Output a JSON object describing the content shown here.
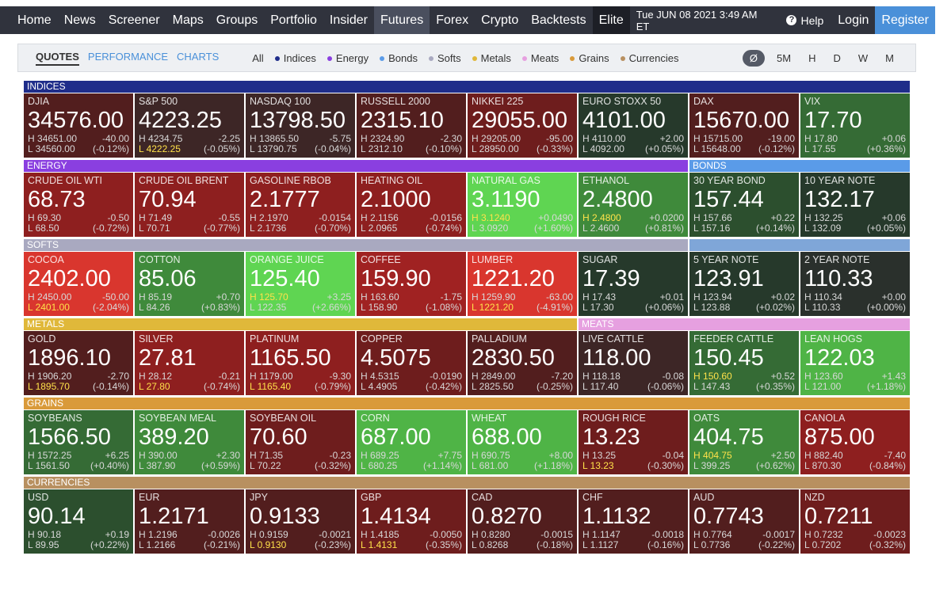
{
  "nav": {
    "items": [
      "Home",
      "News",
      "Screener",
      "Maps",
      "Groups",
      "Portfolio",
      "Insider",
      "Futures",
      "Forex",
      "Crypto",
      "Backtests",
      "Elite"
    ],
    "active": "Futures",
    "datetime": "Tue JUN 08 2021 3:49 AM ET",
    "help": "Help",
    "login": "Login",
    "register": "Register"
  },
  "toolbar": {
    "tabs": [
      "QUOTES",
      "PERFORMANCE",
      "CHARTS"
    ],
    "filters": [
      {
        "label": "All"
      },
      {
        "label": "Indices",
        "color": "#1f2d8a"
      },
      {
        "label": "Energy",
        "color": "#8a3fe0"
      },
      {
        "label": "Bonds",
        "color": "#5a9be8"
      },
      {
        "label": "Softs",
        "color": "#a9a9c0"
      },
      {
        "label": "Metals",
        "color": "#e0b83a"
      },
      {
        "label": "Meats",
        "color": "#e6a0e0"
      },
      {
        "label": "Grains",
        "color": "#d99a3a"
      },
      {
        "label": "Currencies",
        "color": "#b89060"
      }
    ],
    "timeframes": [
      "Ø",
      "5M",
      "H",
      "D",
      "W",
      "M"
    ]
  },
  "labels": {
    "high": "H",
    "low": "L"
  },
  "rows": [
    {
      "headers": [
        {
          "label": "INDICES",
          "span": 8,
          "color": "#1f2d8a"
        }
      ],
      "tiles": [
        {
          "name": "DJIA",
          "price": "34576.00",
          "high": "34651.00",
          "low": "34560.00",
          "change": "-40.00",
          "percent": "(-0.12%)",
          "color": "#521e1e"
        },
        {
          "name": "S&P 500",
          "price": "4223.25",
          "high": "4234.75",
          "low": "4222.25",
          "change": "-2.25",
          "percent": "(-0.05%)",
          "color": "#3d2626",
          "flag": "low"
        },
        {
          "name": "NASDAQ 100",
          "price": "13798.50",
          "high": "13865.50",
          "low": "13790.75",
          "change": "-5.75",
          "percent": "(-0.04%)",
          "color": "#3d2626"
        },
        {
          "name": "RUSSELL 2000",
          "price": "2315.10",
          "high": "2324.90",
          "low": "2312.10",
          "change": "-2.30",
          "percent": "(-0.10%)",
          "color": "#521e1e"
        },
        {
          "name": "NIKKEI 225",
          "price": "29055.00",
          "high": "29205.00",
          "low": "28950.00",
          "change": "-95.00",
          "percent": "(-0.33%)",
          "color": "#6e1d1d"
        },
        {
          "name": "EURO STOXX 50",
          "price": "4101.00",
          "high": "4110.00",
          "low": "4092.00",
          "change": "+2.00",
          "percent": "(+0.05%)",
          "color": "#26392b"
        },
        {
          "name": "DAX",
          "price": "15670.00",
          "high": "15715.00",
          "low": "15648.00",
          "change": "-19.00",
          "percent": "(-0.12%)",
          "color": "#521e1e"
        },
        {
          "name": "VIX",
          "price": "17.70",
          "high": "17.80",
          "low": "17.55",
          "change": "+0.06",
          "percent": "(+0.36%)",
          "color": "#356b35"
        }
      ]
    },
    {
      "headers": [
        {
          "label": "ENERGY",
          "span": 6,
          "color": "#8a3fe0"
        },
        {
          "label": "BONDS",
          "span": 2,
          "color": "#5a9be8"
        }
      ],
      "tiles": [
        {
          "name": "CRUDE OIL WTI",
          "price": "68.73",
          "high": "69.30",
          "low": "68.50",
          "change": "-0.50",
          "percent": "(-0.72%)",
          "color": "#8e1f1f"
        },
        {
          "name": "CRUDE OIL BRENT",
          "price": "70.94",
          "high": "71.49",
          "low": "70.71",
          "change": "-0.55",
          "percent": "(-0.77%)",
          "color": "#8e1f1f"
        },
        {
          "name": "GASOLINE RBOB",
          "price": "2.1777",
          "high": "2.1970",
          "low": "2.1736",
          "change": "-0.0154",
          "percent": "(-0.70%)",
          "color": "#8e1f1f"
        },
        {
          "name": "HEATING OIL",
          "price": "2.1000",
          "high": "2.1156",
          "low": "2.0965",
          "change": "-0.0156",
          "percent": "(-0.74%)",
          "color": "#8e1f1f"
        },
        {
          "name": "NATURAL GAS",
          "price": "3.1190",
          "high": "3.1240",
          "low": "3.0920",
          "change": "+0.0490",
          "percent": "(+1.60%)",
          "color": "#5fd552",
          "flag": "high"
        },
        {
          "name": "ETHANOL",
          "price": "2.4800",
          "high": "2.4800",
          "low": "2.4600",
          "change": "+0.0200",
          "percent": "(+0.81%)",
          "color": "#3f8a3b",
          "flag": "high"
        },
        {
          "name": "30 YEAR BOND",
          "price": "157.44",
          "high": "157.66",
          "low": "157.16",
          "change": "+0.22",
          "percent": "(+0.14%)",
          "color": "#2c4f2e"
        },
        {
          "name": "10 YEAR NOTE",
          "price": "132.17",
          "high": "132.25",
          "low": "132.09",
          "change": "+0.06",
          "percent": "(+0.05%)",
          "color": "#26392b"
        }
      ]
    },
    {
      "headers": [
        {
          "label": "SOFTS",
          "span": 6,
          "color": "#a9a9c0"
        },
        {
          "span": 2,
          "color": "#7fa6d8"
        }
      ],
      "tiles": [
        {
          "name": "COCOA",
          "price": "2402.00",
          "high": "2450.00",
          "low": "2401.00",
          "change": "-50.00",
          "percent": "(-2.04%)",
          "color": "#d9362e",
          "flag": "low"
        },
        {
          "name": "COTTON",
          "price": "85.06",
          "high": "85.19",
          "low": "84.26",
          "change": "+0.70",
          "percent": "(+0.83%)",
          "color": "#3f8a3b"
        },
        {
          "name": "ORANGE JUICE",
          "price": "125.40",
          "high": "125.70",
          "low": "122.35",
          "change": "+3.25",
          "percent": "(+2.66%)",
          "color": "#5fd552",
          "flag": "high"
        },
        {
          "name": "COFFEE",
          "price": "159.90",
          "high": "163.60",
          "low": "158.90",
          "change": "-1.75",
          "percent": "(-1.08%)",
          "color": "#a02222"
        },
        {
          "name": "LUMBER",
          "price": "1221.20",
          "high": "1259.90",
          "low": "1221.20",
          "change": "-63.00",
          "percent": "(-4.91%)",
          "color": "#d9362e",
          "flag": "low"
        },
        {
          "name": "SUGAR",
          "price": "17.39",
          "high": "17.43",
          "low": "17.30",
          "change": "+0.01",
          "percent": "(+0.06%)",
          "color": "#26392b"
        },
        {
          "name": "5 YEAR NOTE",
          "price": "123.91",
          "high": "123.94",
          "low": "123.88",
          "change": "+0.02",
          "percent": "(+0.02%)",
          "color": "#26392b"
        },
        {
          "name": "2 YEAR NOTE",
          "price": "110.33",
          "high": "110.34",
          "low": "110.33",
          "change": "+0.00",
          "percent": "(+0.00%)",
          "color": "#2a302c"
        }
      ]
    },
    {
      "headers": [
        {
          "label": "METALS",
          "span": 5,
          "color": "#e0b83a"
        },
        {
          "label": "MEATS",
          "span": 3,
          "color": "#e6a0e0"
        }
      ],
      "tiles": [
        {
          "name": "GOLD",
          "price": "1896.10",
          "high": "1906.20",
          "low": "1895.70",
          "change": "-2.70",
          "percent": "(-0.14%)",
          "color": "#521e1e",
          "flag": "low"
        },
        {
          "name": "SILVER",
          "price": "27.81",
          "high": "28.12",
          "low": "27.80",
          "change": "-0.21",
          "percent": "(-0.74%)",
          "color": "#8e1f1f",
          "flag": "low"
        },
        {
          "name": "PLATINUM",
          "price": "1165.50",
          "high": "1179.00",
          "low": "1165.40",
          "change": "-9.30",
          "percent": "(-0.79%)",
          "color": "#8e1f1f",
          "flag": "low"
        },
        {
          "name": "COPPER",
          "price": "4.5075",
          "high": "4.5315",
          "low": "4.4905",
          "change": "-0.0190",
          "percent": "(-0.42%)",
          "color": "#6e1d1d"
        },
        {
          "name": "PALLADIUM",
          "price": "2830.50",
          "high": "2849.00",
          "low": "2825.50",
          "change": "-7.20",
          "percent": "(-0.25%)",
          "color": "#521e1e"
        },
        {
          "name": "LIVE CATTLE",
          "price": "118.00",
          "high": "118.18",
          "low": "117.40",
          "change": "-0.08",
          "percent": "(-0.06%)",
          "color": "#3d2626"
        },
        {
          "name": "FEEDER CATTLE",
          "price": "150.45",
          "high": "150.60",
          "low": "147.43",
          "change": "+0.52",
          "percent": "(+0.35%)",
          "color": "#356b35",
          "flag": "high"
        },
        {
          "name": "LEAN HOGS",
          "price": "122.03",
          "high": "123.60",
          "low": "121.00",
          "change": "+1.43",
          "percent": "(+1.18%)",
          "color": "#4fb446"
        }
      ]
    },
    {
      "headers": [
        {
          "label": "GRAINS",
          "span": 8,
          "color": "#d99a3a"
        }
      ],
      "tiles": [
        {
          "name": "SOYBEANS",
          "price": "1566.50",
          "high": "1572.25",
          "low": "1561.50",
          "change": "+6.25",
          "percent": "(+0.40%)",
          "color": "#356b35"
        },
        {
          "name": "SOYBEAN MEAL",
          "price": "389.20",
          "high": "390.00",
          "low": "387.90",
          "change": "+2.30",
          "percent": "(+0.59%)",
          "color": "#3f8a3b"
        },
        {
          "name": "SOYBEAN OIL",
          "price": "70.60",
          "high": "71.35",
          "low": "70.22",
          "change": "-0.23",
          "percent": "(-0.32%)",
          "color": "#6e1d1d"
        },
        {
          "name": "CORN",
          "price": "687.00",
          "high": "689.25",
          "low": "680.25",
          "change": "+7.75",
          "percent": "(+1.14%)",
          "color": "#4fb446"
        },
        {
          "name": "WHEAT",
          "price": "688.00",
          "high": "690.75",
          "low": "681.00",
          "change": "+8.00",
          "percent": "(+1.18%)",
          "color": "#4fb446"
        },
        {
          "name": "ROUGH RICE",
          "price": "13.23",
          "high": "13.25",
          "low": "13.23",
          "change": "-0.04",
          "percent": "(-0.30%)",
          "color": "#6e1d1d",
          "flag": "low"
        },
        {
          "name": "OATS",
          "price": "404.75",
          "high": "404.75",
          "low": "399.25",
          "change": "+2.50",
          "percent": "(+0.62%)",
          "color": "#3f8a3b",
          "flag": "high"
        },
        {
          "name": "CANOLA",
          "price": "875.00",
          "high": "882.40",
          "low": "870.30",
          "change": "-7.40",
          "percent": "(-0.84%)",
          "color": "#8e1f1f"
        }
      ]
    },
    {
      "headers": [
        {
          "label": "CURRENCIES",
          "span": 8,
          "color": "#b89060"
        }
      ],
      "tiles": [
        {
          "name": "USD",
          "price": "90.14",
          "high": "90.18",
          "low": "89.95",
          "change": "+0.19",
          "percent": "(+0.22%)",
          "color": "#2c4f2e"
        },
        {
          "name": "EUR",
          "price": "1.2171",
          "high": "1.2196",
          "low": "1.2166",
          "change": "-0.0026",
          "percent": "(-0.21%)",
          "color": "#521e1e"
        },
        {
          "name": "JPY",
          "price": "0.9133",
          "high": "0.9159",
          "low": "0.9130",
          "change": "-0.0021",
          "percent": "(-0.23%)",
          "color": "#521e1e",
          "flag": "low"
        },
        {
          "name": "GBP",
          "price": "1.4134",
          "high": "1.4185",
          "low": "1.4131",
          "change": "-0.0050",
          "percent": "(-0.35%)",
          "color": "#6e1d1d",
          "flag": "low"
        },
        {
          "name": "CAD",
          "price": "0.8270",
          "high": "0.8280",
          "low": "0.8268",
          "change": "-0.0015",
          "percent": "(-0.18%)",
          "color": "#521e1e"
        },
        {
          "name": "CHF",
          "price": "1.1132",
          "high": "1.1147",
          "low": "1.1127",
          "change": "-0.0018",
          "percent": "(-0.16%)",
          "color": "#521e1e"
        },
        {
          "name": "AUD",
          "price": "0.7743",
          "high": "0.7764",
          "low": "0.7736",
          "change": "-0.0017",
          "percent": "(-0.22%)",
          "color": "#521e1e"
        },
        {
          "name": "NZD",
          "price": "0.7211",
          "high": "0.7232",
          "low": "0.7202",
          "change": "-0.0023",
          "percent": "(-0.32%)",
          "color": "#6e1d1d"
        }
      ]
    }
  ]
}
